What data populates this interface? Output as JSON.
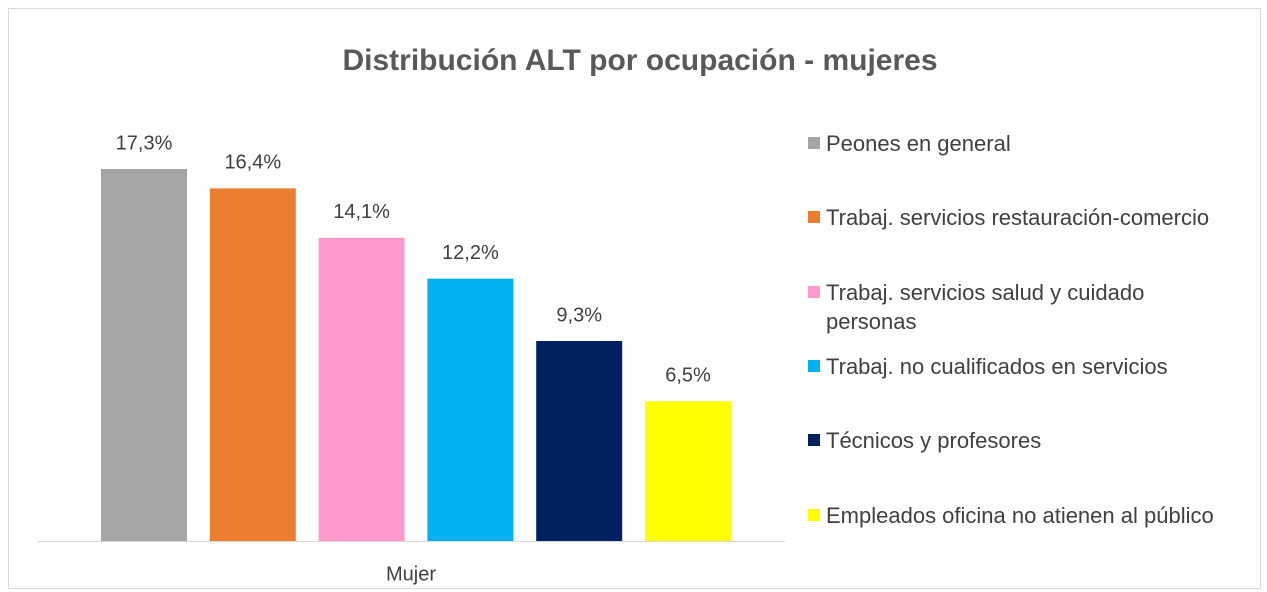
{
  "chart_data": {
    "type": "bar",
    "title": "Distribución ALT por ocupación - mujeres",
    "categories": [
      "Mujer"
    ],
    "series": [
      {
        "name": "Peones en general",
        "color": "#a5a5a5",
        "values": [
          17.3
        ],
        "value_labels": [
          "17,3%"
        ]
      },
      {
        "name": "Trabaj. servicios restauración-comercio",
        "color": "#ed7d31",
        "values": [
          16.4
        ],
        "value_labels": [
          "16,4%"
        ]
      },
      {
        "name": "Trabaj. servicios salud y cuidado personas",
        "color": "#ff99cc",
        "values": [
          14.1
        ],
        "value_labels": [
          "14,1%"
        ]
      },
      {
        "name": "Trabaj. no cualificados en servicios",
        "color": "#00b0f0",
        "values": [
          12.2
        ],
        "value_labels": [
          "12,2%"
        ]
      },
      {
        "name": "Técnicos y profesores",
        "color": "#002060",
        "values": [
          9.3
        ],
        "value_labels": [
          "9,3%"
        ]
      },
      {
        "name": "Empleados oficina no atienen al público",
        "color": "#ffff00",
        "values": [
          6.5
        ],
        "value_labels": [
          "6,5%"
        ]
      }
    ],
    "legend": "right"
  }
}
